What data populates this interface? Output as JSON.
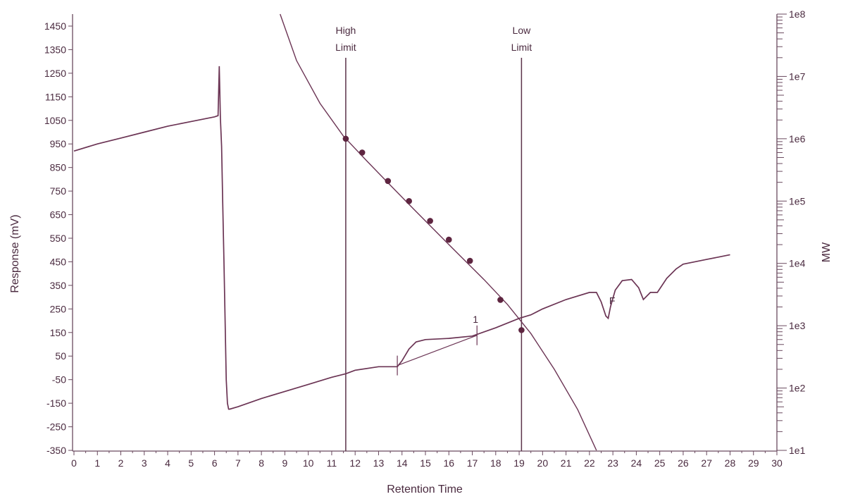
{
  "chart_data": {
    "type": "line",
    "xlabel": "Retention Time",
    "ylabel": "Response (mV)",
    "y2label": "MW",
    "xlim": [
      0,
      30
    ],
    "ylim": [
      -350,
      1450
    ],
    "y2lim": [
      10,
      100000000
    ],
    "y2_scale": "log",
    "grid": false,
    "xticks": [
      "0",
      "1",
      "2",
      "3",
      "4",
      "5",
      "6",
      "7",
      "8",
      "9",
      "10",
      "11",
      "12",
      "13",
      "14",
      "15",
      "16",
      "17",
      "18",
      "19",
      "20",
      "21",
      "22",
      "23",
      "24",
      "25",
      "26",
      "27",
      "28",
      "29",
      "30"
    ],
    "yticks": [
      "1450",
      "1350",
      "1250",
      "1150",
      "1050",
      "950",
      "850",
      "750",
      "650",
      "550",
      "450",
      "350",
      "250",
      "150",
      "50",
      "-50",
      "-150",
      "-250",
      "-350"
    ],
    "y2ticks": [
      "1e8",
      "1e7",
      "1e6",
      "1e5",
      "1e4",
      "1e3",
      "1e2",
      "1e1"
    ],
    "limits": [
      {
        "line1": "High",
        "line2": "Limit",
        "x": 11.6
      },
      {
        "line1": "Low",
        "line2": "Limit",
        "x": 19.1
      }
    ],
    "series": [
      {
        "role": "detector-response",
        "x": [
          0,
          1,
          2,
          3,
          4,
          5,
          6,
          6.15,
          6.2,
          6.25,
          6.3,
          6.35,
          6.4,
          6.45,
          6.5,
          6.55,
          6.6,
          6.65,
          7,
          8,
          9,
          10,
          11,
          11.6,
          12,
          13,
          13.5,
          13.8,
          14,
          14.3,
          14.6,
          15,
          16,
          17,
          18,
          19,
          19.5,
          20,
          21,
          22,
          22.3,
          22.5,
          22.7,
          22.8,
          22.9,
          23.1,
          23.4,
          23.8,
          24.1,
          24.3,
          24.6,
          24.9,
          25.3,
          25.7,
          26,
          26.5,
          27,
          27.5,
          28
        ],
        "y": [
          920,
          950,
          975,
          1000,
          1025,
          1045,
          1065,
          1070,
          1280,
          1060,
          940,
          700,
          460,
          200,
          -50,
          -150,
          -175,
          -175,
          -165,
          -130,
          -100,
          -70,
          -40,
          -25,
          -10,
          5,
          5,
          5,
          30,
          80,
          110,
          120,
          125,
          135,
          170,
          210,
          225,
          250,
          290,
          320,
          320,
          280,
          220,
          210,
          260,
          330,
          370,
          375,
          340,
          290,
          320,
          320,
          380,
          420,
          440,
          450,
          460,
          470,
          480
        ]
      },
      {
        "role": "calibration-curve",
        "x": [
          8.8,
          9.5,
          10.5,
          11.5,
          12.5,
          13.5,
          14.5,
          15.5,
          16.5,
          17.5,
          18.5,
          19.5,
          20.5,
          21.5,
          22.3
        ],
        "y_mw": [
          100000000,
          18000000,
          3700000,
          1100000,
          440000,
          180000,
          74000,
          31000,
          13000,
          5500,
          2200,
          750,
          200,
          45,
          10
        ]
      },
      {
        "role": "calibration-points",
        "x": [
          11.6,
          12.3,
          13.4,
          14.3,
          15.2,
          16.0,
          16.9,
          18.2,
          19.1
        ],
        "y_mw": [
          1000000,
          600000,
          210000,
          100000,
          48000,
          24000,
          11000,
          2600,
          850
        ]
      },
      {
        "role": "integration-baseline",
        "x": [
          13.8,
          17.2
        ],
        "y": [
          10,
          138
        ]
      }
    ],
    "peak_markers": [
      {
        "label": "",
        "x": 13.8
      },
      {
        "label": "1",
        "x": 17.2
      }
    ],
    "annotations": [
      {
        "text": "F",
        "x": 22.85,
        "y": 265
      }
    ]
  }
}
